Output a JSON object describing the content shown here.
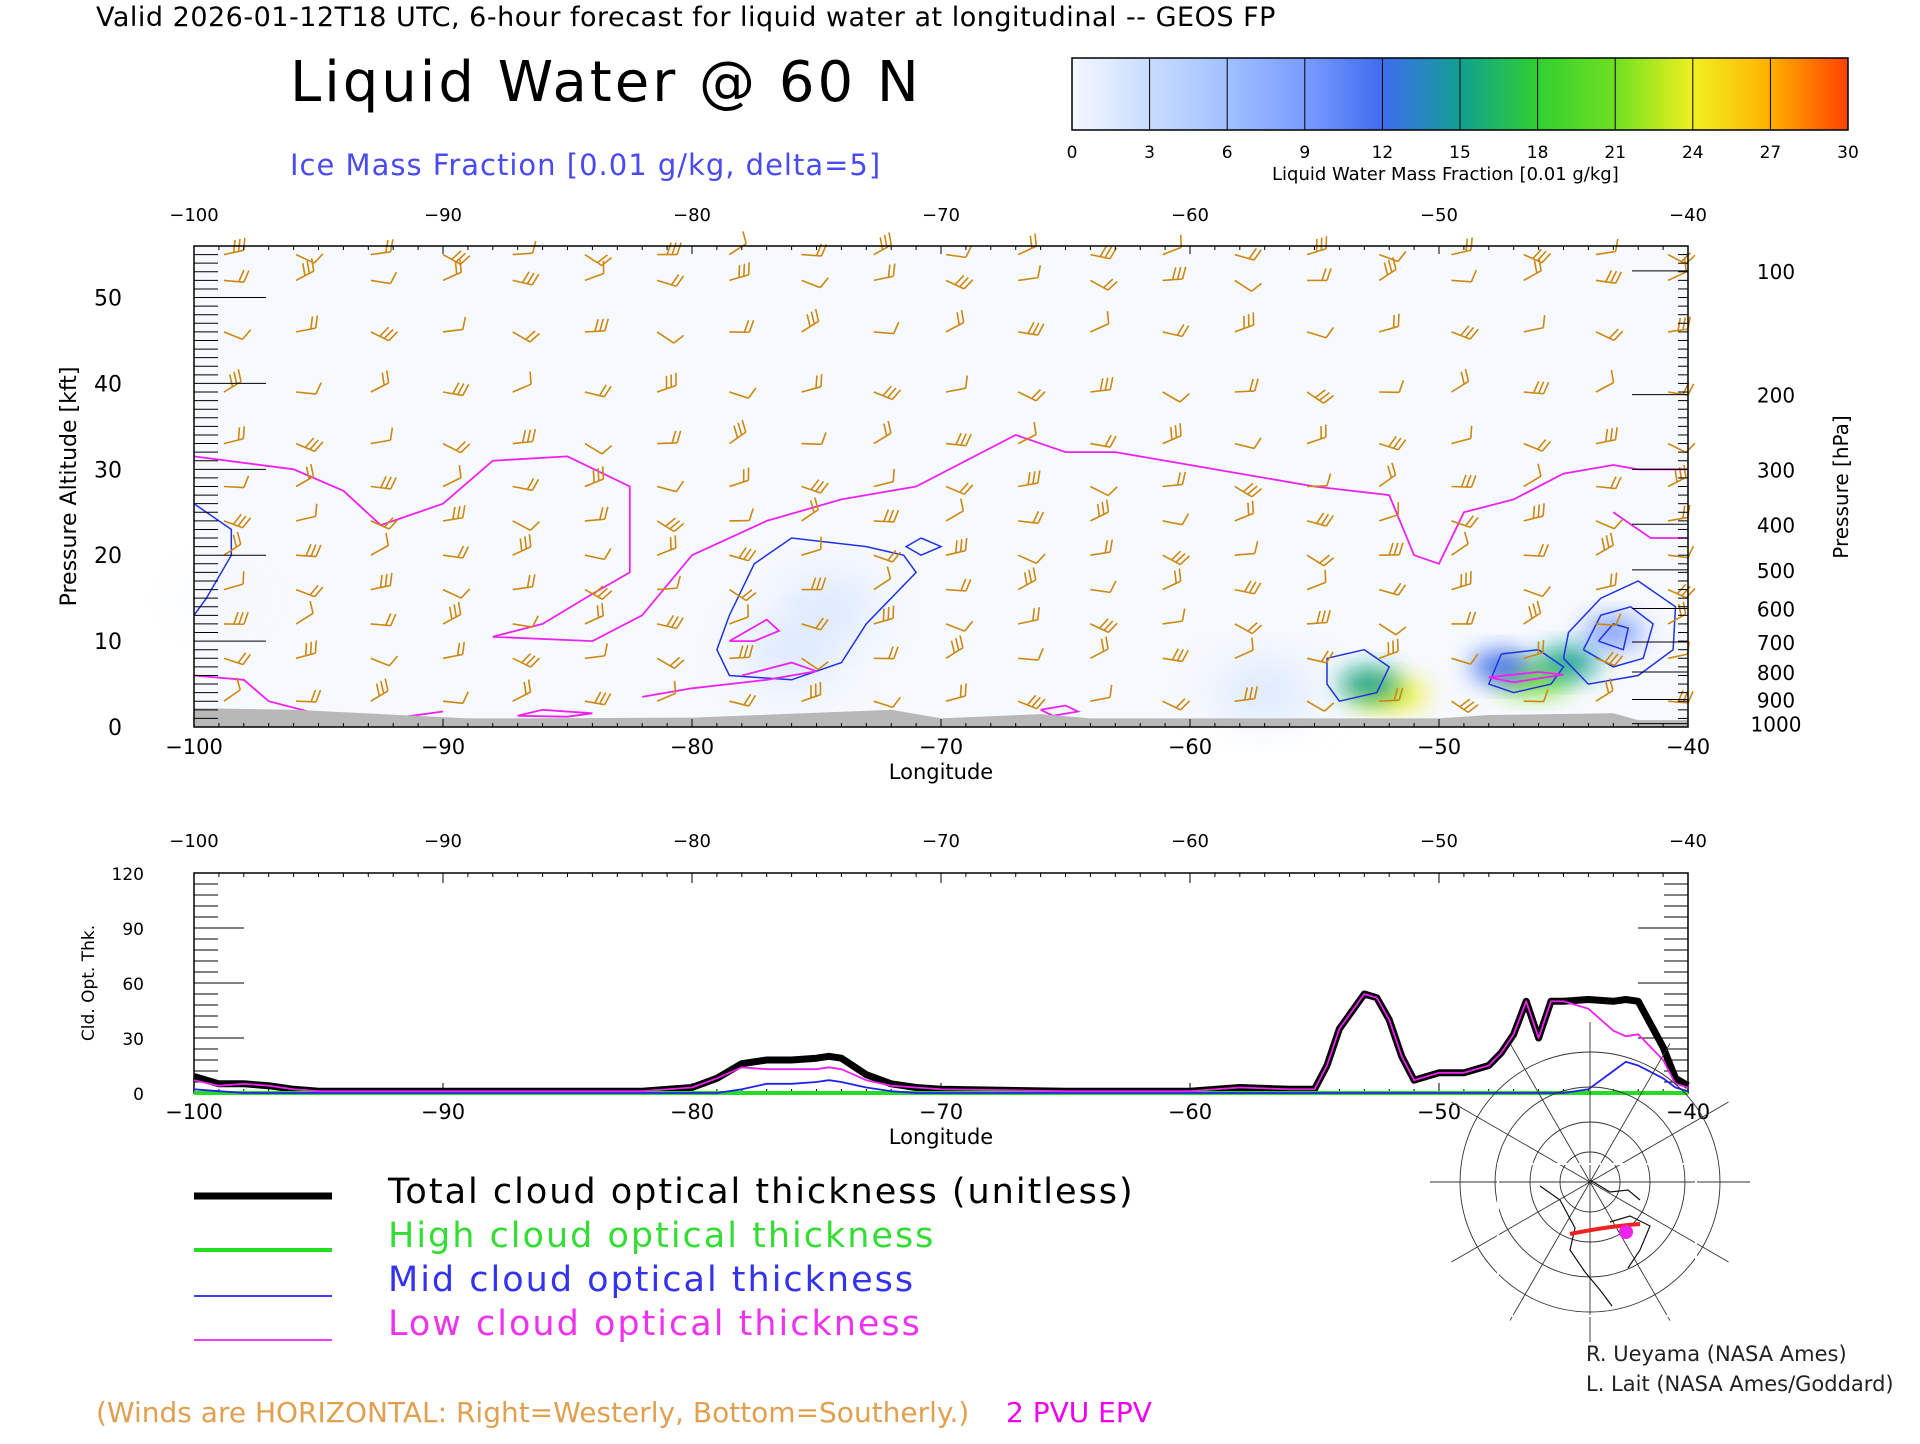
{
  "header": {
    "valid_line": "Valid 2026-01-12T18 UTC, 6-hour forecast for liquid water at longitudinal -- GEOS FP",
    "title": "Liquid Water @ 60 N",
    "ice_label": "Ice Mass Fraction [0.01 g/kg, delta=5]"
  },
  "colorbar": {
    "label": "Liquid Water Mass Fraction [0.01 g/kg]",
    "ticks": [
      "0",
      "3",
      "6",
      "9",
      "12",
      "15",
      "18",
      "21",
      "24",
      "27",
      "30"
    ],
    "colors": [
      "#f4f8ff",
      "#c8dcff",
      "#a0c0ff",
      "#7a9cff",
      "#3f6cf0",
      "#10a090",
      "#30d030",
      "#70e020",
      "#f0f020",
      "#ffb000",
      "#ff4000"
    ]
  },
  "legend": {
    "total": "Total cloud optical thickness (unitless)",
    "high": "High cloud optical thickness",
    "mid": "Mid cloud optical thickness",
    "low": "Low cloud optical thickness",
    "total_color": "#000000",
    "high_color": "#22dd22",
    "mid_color": "#2222ee",
    "low_color": "#ee22ee"
  },
  "footer": {
    "winds_note": "(Winds are HORIZONTAL: Right=Westerly, Bottom=Southerly.)",
    "epv_note": "2 PVU EPV",
    "credit_1": "R. Ueyama (NASA Ames)",
    "credit_2": "L. Lait (NASA Ames/Goddard)"
  },
  "chart_data": [
    {
      "type": "heatmap",
      "title": "Liquid Water @ 60 N",
      "xlabel": "Longitude",
      "ylabel": "Pressure Altitude [kft]",
      "y2label": "Pressure [hPa]",
      "xlim": [
        -100,
        -40
      ],
      "ylim": [
        0,
        56
      ],
      "xticks": [
        -100,
        -90,
        -80,
        -70,
        -60,
        -50,
        -40
      ],
      "xtick_labels": [
        "−100",
        "−90",
        "−80",
        "−70",
        "−60",
        "−50",
        "−40"
      ],
      "yticks": [
        0,
        10,
        20,
        30,
        40,
        50
      ],
      "yticklabels": [
        "0",
        "10",
        "20",
        "30",
        "40",
        "50"
      ],
      "pressure_levels": [
        100,
        200,
        300,
        400,
        500,
        600,
        700,
        800,
        900,
        1000
      ],
      "pressure_labels": [
        "100",
        "200",
        "300",
        "400",
        "500",
        "600",
        "700",
        "800",
        "900",
        "1000"
      ],
      "pressure_kft": [
        53.1,
        38.7,
        30.0,
        23.6,
        18.3,
        13.8,
        9.9,
        6.4,
        3.2,
        0.4
      ],
      "liquid_water_blobs": [
        {
          "lon": -52.0,
          "kft": 3.8,
          "value": 24
        },
        {
          "lon": -52.8,
          "kft": 5.0,
          "value": 14
        },
        {
          "lon": -46.2,
          "kft": 5.6,
          "value": 22
        },
        {
          "lon": -44.8,
          "kft": 7.5,
          "value": 16
        },
        {
          "lon": -47.5,
          "kft": 7.0,
          "value": 12
        },
        {
          "lon": -43.0,
          "kft": 11.0,
          "value": 9
        },
        {
          "lon": -74.5,
          "kft": 14.0,
          "value": 2
        },
        {
          "lon": -76.0,
          "kft": 8.5,
          "value": 2
        },
        {
          "lon": -57.0,
          "kft": 4.0,
          "value": 2
        },
        {
          "lon": -99.0,
          "kft": 15.0,
          "value": 1
        }
      ],
      "epv_2pvu_kft": [
        [
          -100,
          31.5
        ],
        [
          -96,
          30.0
        ],
        [
          -94,
          27.5
        ],
        [
          -92.5,
          23.5
        ],
        [
          -90,
          26.0
        ],
        [
          -88,
          31.0
        ],
        [
          -85,
          31.5
        ],
        [
          -82.5,
          28.0
        ],
        [
          -82.5,
          18.0
        ],
        [
          -84,
          15.5
        ],
        [
          -86,
          12.0
        ],
        [
          -88,
          10.5
        ],
        [
          -84,
          10.0
        ],
        [
          -82,
          13.0
        ],
        [
          -80,
          20.0
        ],
        [
          -77,
          24.0
        ],
        [
          -74,
          26.5
        ],
        [
          -71,
          28.0
        ],
        [
          -67,
          34.0
        ],
        [
          -65,
          32.0
        ],
        [
          -63,
          32.0
        ],
        [
          -60,
          30.5
        ],
        [
          -55,
          28.0
        ],
        [
          -52,
          27.0
        ],
        [
          -51,
          20.0
        ],
        [
          -50,
          19.0
        ],
        [
          -49,
          25.0
        ],
        [
          -47,
          26.5
        ],
        [
          -45,
          29.5
        ],
        [
          -43,
          30.5
        ],
        [
          -42,
          30.0
        ],
        [
          -40,
          30.0
        ]
      ],
      "wind_barb_columns": [
        -98.8,
        -95.9,
        -92.9,
        -90.0,
        -87.2,
        -84.3,
        -81.4,
        -78.5,
        -75.6,
        -72.7,
        -69.8,
        -66.9,
        -64.0,
        -61.1,
        -58.2,
        -55.3,
        -52.4,
        -49.5,
        -46.6,
        -43.7,
        -40.8
      ],
      "wind_barb_levels_kft": [
        3,
        8,
        12,
        16,
        20,
        24,
        28,
        33,
        39,
        46,
        52,
        55
      ]
    },
    {
      "type": "line",
      "xlabel": "Longitude",
      "ylabel": "Cld. Opt. Thk.",
      "xlim": [
        -100,
        -40
      ],
      "ylim": [
        0,
        120
      ],
      "yticks": [
        0,
        30,
        60,
        90,
        120
      ],
      "yticklabels": [
        "0",
        "30",
        "60",
        "90",
        "120"
      ],
      "x": [
        -100,
        -99,
        -98,
        -97,
        -96,
        -95,
        -90,
        -85,
        -82,
        -80,
        -79,
        -78,
        -77,
        -76,
        -75,
        -74.5,
        -74,
        -73,
        -72,
        -71,
        -70,
        -65,
        -60,
        -58,
        -56,
        -55,
        -54.5,
        -54,
        -53,
        -52.5,
        -52,
        -51.5,
        -51,
        -50,
        -49,
        -48,
        -47.5,
        -47,
        -46.5,
        -46,
        -45.5,
        -45,
        -44,
        -43,
        -42.5,
        -42,
        -41,
        -40.5,
        -40
      ],
      "series": [
        {
          "name": "Total cloud optical thickness (unitless)",
          "values": [
            9,
            5,
            5,
            4,
            2,
            1,
            1,
            1,
            1,
            3,
            8,
            16,
            18,
            18,
            19,
            20,
            19,
            10,
            5,
            3,
            2,
            1,
            1,
            3,
            2,
            2,
            15,
            35,
            54,
            52,
            40,
            20,
            7,
            11,
            11,
            15,
            22,
            32,
            50,
            30,
            50,
            50,
            51,
            50,
            51,
            50,
            25,
            8,
            4
          ]
        },
        {
          "name": "High cloud optical thickness",
          "values": [
            0,
            0,
            0,
            0,
            0,
            0,
            0,
            0,
            0,
            0,
            0,
            0,
            0,
            0,
            0,
            0,
            0,
            0,
            0,
            0,
            0,
            0,
            0,
            0,
            0,
            0,
            0,
            0,
            0,
            0,
            0,
            0,
            0,
            0,
            0,
            0,
            0,
            0,
            0,
            0,
            0,
            0,
            0,
            0,
            0,
            0,
            0,
            0,
            0
          ]
        },
        {
          "name": "Mid cloud optical thickness",
          "values": [
            2,
            1,
            0,
            0,
            0,
            0,
            0,
            0,
            0,
            0,
            0,
            2,
            5,
            5,
            6,
            7,
            6,
            3,
            1,
            0,
            0,
            0,
            0,
            0,
            0,
            0,
            0,
            0,
            0,
            0,
            0,
            0,
            0,
            0,
            0,
            0,
            0,
            0,
            0,
            0,
            0,
            0,
            2,
            12,
            17,
            15,
            8,
            3,
            1
          ]
        },
        {
          "name": "Low cloud optical thickness",
          "values": [
            7,
            4,
            5,
            4,
            2,
            1,
            1,
            1,
            1,
            3,
            8,
            14,
            13,
            13,
            13,
            14,
            13,
            7,
            4,
            3,
            2,
            1,
            1,
            3,
            2,
            2,
            15,
            35,
            54,
            52,
            40,
            20,
            7,
            11,
            11,
            15,
            22,
            32,
            50,
            30,
            50,
            50,
            46,
            34,
            31,
            32,
            18,
            5,
            3
          ]
        }
      ]
    }
  ]
}
